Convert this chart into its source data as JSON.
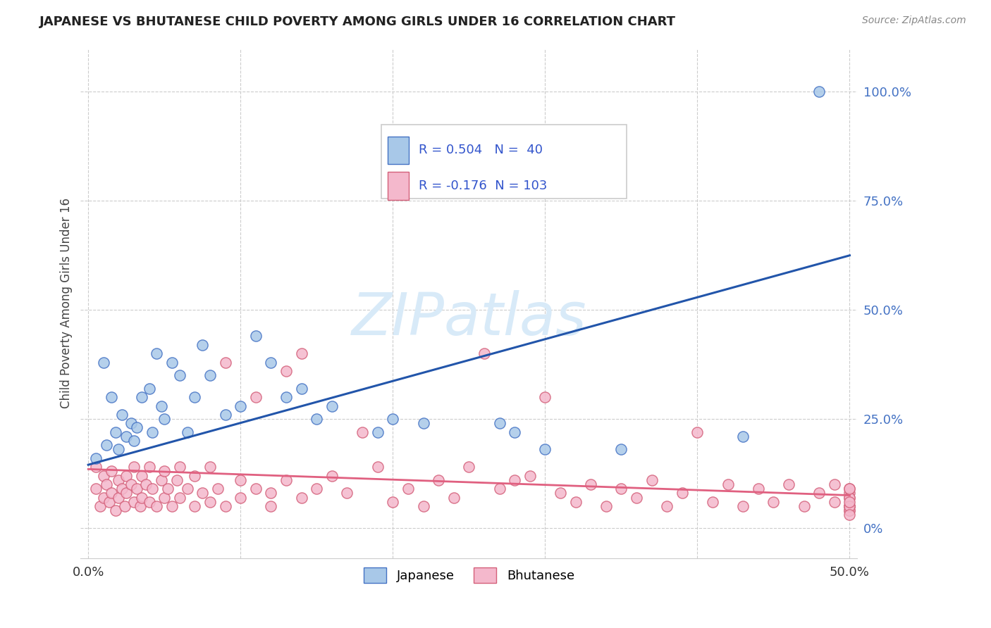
{
  "title": "JAPANESE VS BHUTANESE CHILD POVERTY AMONG GIRLS UNDER 16 CORRELATION CHART",
  "source": "Source: ZipAtlas.com",
  "ylabel": "Child Poverty Among Girls Under 16",
  "japanese_R": 0.504,
  "japanese_N": 40,
  "bhutanese_R": -0.176,
  "bhutanese_N": 103,
  "xlim_min": -0.005,
  "xlim_max": 0.505,
  "ylim_min": -0.07,
  "ylim_max": 1.1,
  "xtick_positions": [
    0.0,
    0.1,
    0.2,
    0.3,
    0.4,
    0.5
  ],
  "xtick_labels": [
    "0.0%",
    "",
    "",
    "",
    "",
    "50.0%"
  ],
  "ytick_positions": [
    0.0,
    0.25,
    0.5,
    0.75,
    1.0
  ],
  "ytick_labels": [
    "0%",
    "25.0%",
    "50.0%",
    "75.0%",
    "100.0%"
  ],
  "japanese_color_fill": "#a8c8e8",
  "japanese_color_edge": "#4472c4",
  "bhutanese_color_fill": "#f4b8cc",
  "bhutanese_color_edge": "#d4607a",
  "japanese_line_color": "#2255aa",
  "bhutanese_line_color": "#e06080",
  "grid_color": "#cccccc",
  "watermark_text": "ZIPatlas",
  "watermark_color": "#d8eaf8",
  "jp_line_x0": 0.0,
  "jp_line_y0": 0.145,
  "jp_line_x1": 0.5,
  "jp_line_y1": 0.625,
  "bh_line_x0": 0.0,
  "bh_line_y0": 0.135,
  "bh_line_x1": 0.5,
  "bh_line_y1": 0.075,
  "japanese_scatter_x": [
    0.005,
    0.01,
    0.012,
    0.015,
    0.018,
    0.02,
    0.022,
    0.025,
    0.028,
    0.03,
    0.032,
    0.035,
    0.04,
    0.042,
    0.045,
    0.048,
    0.05,
    0.055,
    0.06,
    0.065,
    0.07,
    0.075,
    0.08,
    0.09,
    0.1,
    0.11,
    0.12,
    0.13,
    0.14,
    0.15,
    0.16,
    0.19,
    0.2,
    0.22,
    0.27,
    0.28,
    0.3,
    0.35,
    0.43,
    0.48
  ],
  "japanese_scatter_y": [
    0.16,
    0.38,
    0.19,
    0.3,
    0.22,
    0.18,
    0.26,
    0.21,
    0.24,
    0.2,
    0.23,
    0.3,
    0.32,
    0.22,
    0.4,
    0.28,
    0.25,
    0.38,
    0.35,
    0.22,
    0.3,
    0.42,
    0.35,
    0.26,
    0.28,
    0.44,
    0.38,
    0.3,
    0.32,
    0.25,
    0.28,
    0.22,
    0.25,
    0.24,
    0.24,
    0.22,
    0.18,
    0.18,
    0.21,
    1.0
  ],
  "bhutanese_scatter_x": [
    0.005,
    0.005,
    0.008,
    0.01,
    0.01,
    0.012,
    0.014,
    0.015,
    0.015,
    0.018,
    0.02,
    0.02,
    0.022,
    0.024,
    0.025,
    0.025,
    0.028,
    0.03,
    0.03,
    0.032,
    0.034,
    0.035,
    0.035,
    0.038,
    0.04,
    0.04,
    0.042,
    0.045,
    0.048,
    0.05,
    0.05,
    0.052,
    0.055,
    0.058,
    0.06,
    0.06,
    0.065,
    0.07,
    0.07,
    0.075,
    0.08,
    0.08,
    0.085,
    0.09,
    0.09,
    0.1,
    0.1,
    0.11,
    0.11,
    0.12,
    0.12,
    0.13,
    0.13,
    0.14,
    0.14,
    0.15,
    0.16,
    0.17,
    0.18,
    0.19,
    0.2,
    0.21,
    0.22,
    0.23,
    0.24,
    0.25,
    0.26,
    0.27,
    0.28,
    0.29,
    0.3,
    0.31,
    0.32,
    0.33,
    0.34,
    0.35,
    0.36,
    0.37,
    0.38,
    0.39,
    0.4,
    0.41,
    0.42,
    0.43,
    0.44,
    0.45,
    0.46,
    0.47,
    0.48,
    0.49,
    0.49,
    0.5,
    0.5,
    0.5,
    0.5,
    0.5,
    0.5,
    0.5,
    0.5,
    0.5,
    0.5,
    0.5,
    0.5
  ],
  "bhutanese_scatter_y": [
    0.14,
    0.09,
    0.05,
    0.12,
    0.07,
    0.1,
    0.06,
    0.13,
    0.08,
    0.04,
    0.11,
    0.07,
    0.09,
    0.05,
    0.12,
    0.08,
    0.1,
    0.14,
    0.06,
    0.09,
    0.05,
    0.12,
    0.07,
    0.1,
    0.14,
    0.06,
    0.09,
    0.05,
    0.11,
    0.13,
    0.07,
    0.09,
    0.05,
    0.11,
    0.14,
    0.07,
    0.09,
    0.05,
    0.12,
    0.08,
    0.14,
    0.06,
    0.09,
    0.05,
    0.38,
    0.11,
    0.07,
    0.3,
    0.09,
    0.08,
    0.05,
    0.36,
    0.11,
    0.4,
    0.07,
    0.09,
    0.12,
    0.08,
    0.22,
    0.14,
    0.06,
    0.09,
    0.05,
    0.11,
    0.07,
    0.14,
    0.4,
    0.09,
    0.11,
    0.12,
    0.3,
    0.08,
    0.06,
    0.1,
    0.05,
    0.09,
    0.07,
    0.11,
    0.05,
    0.08,
    0.22,
    0.06,
    0.1,
    0.05,
    0.09,
    0.06,
    0.1,
    0.05,
    0.08,
    0.06,
    0.1,
    0.05,
    0.08,
    0.04,
    0.07,
    0.05,
    0.09,
    0.04,
    0.07,
    0.05,
    0.09,
    0.03,
    0.06
  ]
}
